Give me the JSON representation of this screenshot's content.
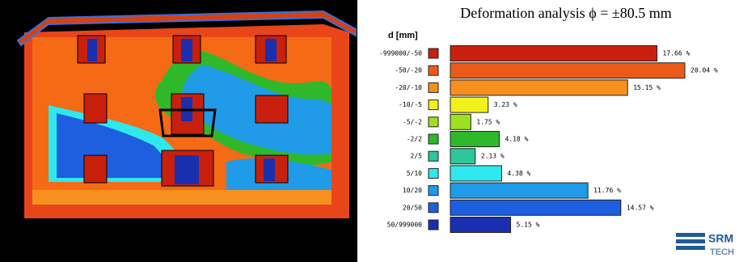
{
  "chart_data": {
    "type": "bar",
    "orientation": "horizontal",
    "title": "Deformation analysis ϕ = ±80.5 mm",
    "ylabel": "d [mm]",
    "categories": [
      "-999000/-50",
      "-50/-20",
      "-20/-10",
      "-10/-5",
      "-5/-2",
      "-2/2",
      "2/5",
      "5/10",
      "10/20",
      "20/50",
      "50/999000"
    ],
    "values": [
      17.66,
      20.04,
      15.15,
      3.23,
      1.75,
      4.18,
      2.13,
      4.38,
      11.76,
      14.57,
      5.15
    ],
    "value_labels": [
      "17.66 %",
      "20.04 %",
      "15.15 %",
      "3.23 %",
      "1.75 %",
      "4.18 %",
      "2.13 %",
      "4.38 %",
      "11.76 %",
      "14.57 %",
      "5.15 %"
    ],
    "colors": [
      "#c8200c",
      "#ec5a1a",
      "#f7901e",
      "#f2f21a",
      "#9ee021",
      "#2fb82a",
      "#2cc79a",
      "#2ee8ee",
      "#1f9be8",
      "#1e5fe0",
      "#1a2fb0"
    ]
  },
  "logo": {
    "line1": "SRM",
    "line2": "TECH"
  }
}
